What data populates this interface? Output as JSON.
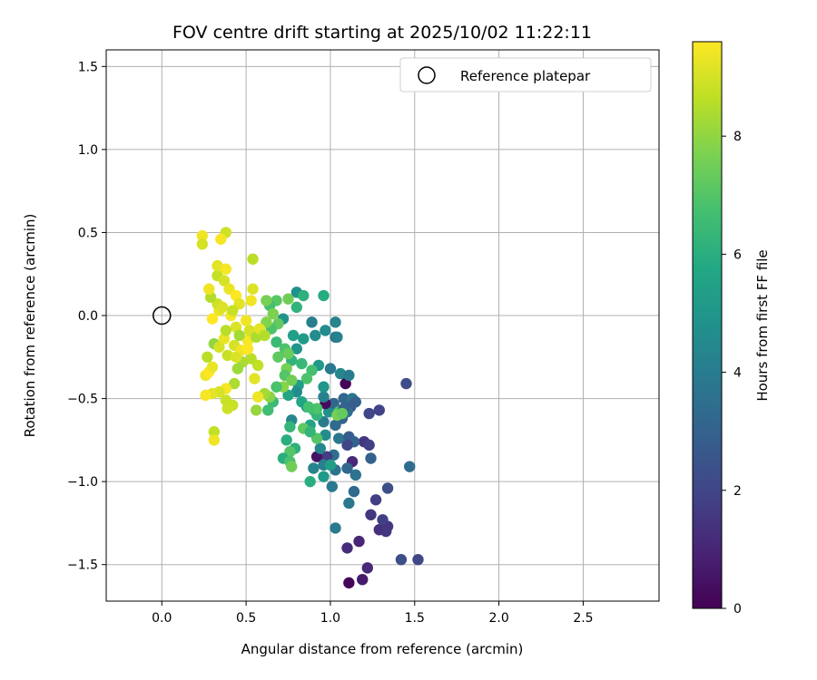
{
  "chart_data": {
    "type": "scatter",
    "title": "FOV centre drift starting at 2025/10/02 11:22:11",
    "xlabel": "Angular distance from reference (arcmin)",
    "ylabel": "Rotation from reference (arcmin)",
    "xlim": [
      -0.33,
      2.95
    ],
    "ylim": [
      -1.72,
      1.6
    ],
    "xticks": [
      0.0,
      0.5,
      1.0,
      1.5,
      2.0,
      2.5
    ],
    "xtick_labels": [
      "0.0",
      "0.5",
      "1.0",
      "1.5",
      "2.0",
      "2.5"
    ],
    "yticks": [
      -1.5,
      -1.0,
      -0.5,
      0.0,
      0.5,
      1.0,
      1.5
    ],
    "ytick_labels": [
      "−1.5",
      "−1.0",
      "−0.5",
      "0.0",
      "0.5",
      "1.0",
      "1.5"
    ],
    "grid": true,
    "legend": {
      "position": "top-right",
      "entries": [
        "Reference platepar"
      ]
    },
    "reference_point": {
      "x": 0.0,
      "y": 0.0
    },
    "colorbar": {
      "label": "Hours from first FF file",
      "min": 0,
      "max": 9.6,
      "ticks": [
        0,
        2,
        4,
        6,
        8
      ],
      "tick_labels": [
        "0",
        "2",
        "4",
        "6",
        "8"
      ],
      "colormap": "viridis"
    },
    "points": [
      {
        "x": 1.11,
        "y": -1.61,
        "t": 0.1
      },
      {
        "x": 1.19,
        "y": -1.59,
        "t": 0.7
      },
      {
        "x": 1.22,
        "y": -1.52,
        "t": 1.1
      },
      {
        "x": 1.1,
        "y": -1.4,
        "t": 1.2
      },
      {
        "x": 1.17,
        "y": -1.36,
        "t": 1.0
      },
      {
        "x": 1.29,
        "y": -1.29,
        "t": 1.3
      },
      {
        "x": 1.33,
        "y": -1.3,
        "t": 1.5
      },
      {
        "x": 1.34,
        "y": -1.27,
        "t": 1.5
      },
      {
        "x": 1.31,
        "y": -1.23,
        "t": 1.8
      },
      {
        "x": 1.24,
        "y": -1.2,
        "t": 1.5
      },
      {
        "x": 1.42,
        "y": -1.47,
        "t": 2.3
      },
      {
        "x": 1.52,
        "y": -1.47,
        "t": 2.1
      },
      {
        "x": 1.27,
        "y": -1.11,
        "t": 1.8
      },
      {
        "x": 1.34,
        "y": -1.04,
        "t": 2.3
      },
      {
        "x": 1.47,
        "y": -0.91,
        "t": 3.4
      },
      {
        "x": 1.45,
        "y": -0.41,
        "t": 2.2
      },
      {
        "x": 1.29,
        "y": -0.57,
        "t": 1.9
      },
      {
        "x": 1.23,
        "y": -0.59,
        "t": 2.0
      },
      {
        "x": 1.2,
        "y": -0.76,
        "t": 1.5
      },
      {
        "x": 1.23,
        "y": -0.78,
        "t": 1.8
      },
      {
        "x": 1.24,
        "y": -0.86,
        "t": 3.0
      },
      {
        "x": 1.15,
        "y": -0.96,
        "t": 3.6
      },
      {
        "x": 1.14,
        "y": -1.06,
        "t": 3.3
      },
      {
        "x": 1.11,
        "y": -1.13,
        "t": 3.8
      },
      {
        "x": 1.03,
        "y": -1.28,
        "t": 3.9
      },
      {
        "x": 1.09,
        "y": -0.41,
        "t": 0.1
      },
      {
        "x": 1.08,
        "y": -0.5,
        "t": 3.2
      },
      {
        "x": 1.13,
        "y": -0.5,
        "t": 3.8
      },
      {
        "x": 1.15,
        "y": -0.52,
        "t": 3.0
      },
      {
        "x": 1.12,
        "y": -0.55,
        "t": 2.8
      },
      {
        "x": 1.1,
        "y": -0.58,
        "t": 3.5
      },
      {
        "x": 1.07,
        "y": -0.62,
        "t": 3.0
      },
      {
        "x": 1.03,
        "y": -0.66,
        "t": 3.3
      },
      {
        "x": 1.05,
        "y": -0.74,
        "t": 3.8
      },
      {
        "x": 1.11,
        "y": -0.73,
        "t": 2.8
      },
      {
        "x": 1.14,
        "y": -0.76,
        "t": 3.0
      },
      {
        "x": 1.1,
        "y": -0.78,
        "t": 2.0
      },
      {
        "x": 1.02,
        "y": -0.84,
        "t": 3.5
      },
      {
        "x": 0.98,
        "y": -0.85,
        "t": 1.7
      },
      {
        "x": 0.92,
        "y": -0.85,
        "t": 0.5
      },
      {
        "x": 1.13,
        "y": -0.88,
        "t": 1.1
      },
      {
        "x": 1.1,
        "y": -0.92,
        "t": 3.2
      },
      {
        "x": 1.03,
        "y": -0.93,
        "t": 3.7
      },
      {
        "x": 1.01,
        "y": -1.03,
        "t": 3.9
      },
      {
        "x": 0.96,
        "y": -0.9,
        "t": 4.1
      },
      {
        "x": 0.94,
        "y": -0.8,
        "t": 4.4
      },
      {
        "x": 0.9,
        "y": -0.92,
        "t": 4.3
      },
      {
        "x": 0.97,
        "y": -0.72,
        "t": 4.6
      },
      {
        "x": 0.96,
        "y": -0.64,
        "t": 4.0
      },
      {
        "x": 0.99,
        "y": -0.58,
        "t": 4.8
      },
      {
        "x": 1.02,
        "y": -0.53,
        "t": 3.2
      },
      {
        "x": 0.97,
        "y": -0.53,
        "t": 0.3
      },
      {
        "x": 1.05,
        "y": -0.58,
        "t": 6.8
      },
      {
        "x": 1.08,
        "y": -0.56,
        "t": 3.0
      },
      {
        "x": 0.96,
        "y": -0.49,
        "t": 4.2
      },
      {
        "x": 1.06,
        "y": -0.35,
        "t": 4.4
      },
      {
        "x": 1.11,
        "y": -0.36,
        "t": 4.0
      },
      {
        "x": 1.0,
        "y": -0.32,
        "t": 3.9
      },
      {
        "x": 0.96,
        "y": -0.43,
        "t": 5.0
      },
      {
        "x": 0.93,
        "y": -0.3,
        "t": 5.1
      },
      {
        "x": 0.97,
        "y": -0.09,
        "t": 4.6
      },
      {
        "x": 1.03,
        "y": -0.13,
        "t": 3.4
      },
      {
        "x": 1.04,
        "y": -0.13,
        "t": 4.2
      },
      {
        "x": 1.03,
        "y": -0.04,
        "t": 4.3
      },
      {
        "x": 0.96,
        "y": 0.12,
        "t": 5.9
      },
      {
        "x": 0.89,
        "y": -0.04,
        "t": 4.1
      },
      {
        "x": 0.91,
        "y": -0.12,
        "t": 4.6
      },
      {
        "x": 0.84,
        "y": -0.14,
        "t": 5.2
      },
      {
        "x": 0.78,
        "y": -0.12,
        "t": 5.4
      },
      {
        "x": 0.8,
        "y": -0.2,
        "t": 5.0
      },
      {
        "x": 0.77,
        "y": -0.27,
        "t": 6.2
      },
      {
        "x": 0.83,
        "y": -0.29,
        "t": 6.4
      },
      {
        "x": 0.89,
        "y": -0.33,
        "t": 6.7
      },
      {
        "x": 0.86,
        "y": -0.38,
        "t": 6.9
      },
      {
        "x": 0.81,
        "y": -0.42,
        "t": 5.4
      },
      {
        "x": 0.8,
        "y": -0.46,
        "t": 4.6
      },
      {
        "x": 0.75,
        "y": -0.48,
        "t": 5.6
      },
      {
        "x": 0.83,
        "y": -0.52,
        "t": 5.7
      },
      {
        "x": 0.86,
        "y": -0.55,
        "t": 5.2
      },
      {
        "x": 0.9,
        "y": -0.57,
        "t": 6.6
      },
      {
        "x": 0.92,
        "y": -0.6,
        "t": 6.3
      },
      {
        "x": 0.88,
        "y": -0.66,
        "t": 5.5
      },
      {
        "x": 0.84,
        "y": -0.68,
        "t": 7.2
      },
      {
        "x": 0.77,
        "y": -0.63,
        "t": 4.4
      },
      {
        "x": 0.76,
        "y": -0.67,
        "t": 6.3
      },
      {
        "x": 0.74,
        "y": -0.75,
        "t": 6.0
      },
      {
        "x": 0.79,
        "y": -0.8,
        "t": 6.1
      },
      {
        "x": 0.76,
        "y": -0.82,
        "t": 7.0
      },
      {
        "x": 0.72,
        "y": -0.86,
        "t": 6.0
      },
      {
        "x": 0.76,
        "y": -0.88,
        "t": 6.8
      },
      {
        "x": 0.77,
        "y": -0.91,
        "t": 7.5
      },
      {
        "x": 0.88,
        "y": -1.0,
        "t": 6.0
      },
      {
        "x": 0.96,
        "y": -0.97,
        "t": 5.2
      },
      {
        "x": 1.0,
        "y": -0.9,
        "t": 5.3
      },
      {
        "x": 1.04,
        "y": -0.6,
        "t": 7.6
      },
      {
        "x": 1.07,
        "y": -0.59,
        "t": 7.3
      },
      {
        "x": 0.92,
        "y": -0.74,
        "t": 7.0
      },
      {
        "x": 0.88,
        "y": -0.7,
        "t": 6.3
      },
      {
        "x": 0.92,
        "y": -0.56,
        "t": 6.9
      },
      {
        "x": 0.87,
        "y": -0.55,
        "t": 6.7
      },
      {
        "x": 0.8,
        "y": 0.14,
        "t": 4.8
      },
      {
        "x": 0.84,
        "y": 0.12,
        "t": 6.1
      },
      {
        "x": 0.75,
        "y": 0.1,
        "t": 7.5
      },
      {
        "x": 0.8,
        "y": 0.05,
        "t": 6.2
      },
      {
        "x": 0.72,
        "y": -0.02,
        "t": 4.9
      },
      {
        "x": 0.68,
        "y": 0.09,
        "t": 7.1
      },
      {
        "x": 0.64,
        "y": 0.06,
        "t": 6.7
      },
      {
        "x": 0.62,
        "y": 0.09,
        "t": 7.6
      },
      {
        "x": 0.66,
        "y": 0.01,
        "t": 7.7
      },
      {
        "x": 0.69,
        "y": -0.05,
        "t": 7.3
      },
      {
        "x": 0.65,
        "y": -0.08,
        "t": 6.9
      },
      {
        "x": 0.62,
        "y": -0.04,
        "t": 7.8
      },
      {
        "x": 0.68,
        "y": -0.16,
        "t": 6.5
      },
      {
        "x": 0.73,
        "y": -0.2,
        "t": 6.9
      },
      {
        "x": 0.75,
        "y": -0.23,
        "t": 7.4
      },
      {
        "x": 0.69,
        "y": -0.25,
        "t": 7.2
      },
      {
        "x": 0.74,
        "y": -0.32,
        "t": 7.6
      },
      {
        "x": 0.73,
        "y": -0.36,
        "t": 7.0
      },
      {
        "x": 0.77,
        "y": -0.39,
        "t": 7.5
      },
      {
        "x": 0.72,
        "y": -0.43,
        "t": 7.9
      },
      {
        "x": 0.68,
        "y": -0.43,
        "t": 6.8
      },
      {
        "x": 0.66,
        "y": -0.52,
        "t": 6.5
      },
      {
        "x": 0.64,
        "y": -0.49,
        "t": 7.9
      },
      {
        "x": 0.63,
        "y": -0.57,
        "t": 6.6
      },
      {
        "x": 0.61,
        "y": -0.47,
        "t": 8.3
      },
      {
        "x": 0.56,
        "y": -0.57,
        "t": 8.1
      },
      {
        "x": 0.57,
        "y": -0.49,
        "t": 9.4
      },
      {
        "x": 0.55,
        "y": -0.38,
        "t": 9.2
      },
      {
        "x": 0.57,
        "y": -0.3,
        "t": 8.7
      },
      {
        "x": 0.53,
        "y": -0.26,
        "t": 8.6
      },
      {
        "x": 0.48,
        "y": -0.28,
        "t": 8.4
      },
      {
        "x": 0.45,
        "y": -0.32,
        "t": 8.2
      },
      {
        "x": 0.43,
        "y": -0.41,
        "t": 8.4
      },
      {
        "x": 0.42,
        "y": -0.54,
        "t": 8.8
      },
      {
        "x": 0.39,
        "y": -0.56,
        "t": 8.9
      },
      {
        "x": 0.38,
        "y": -0.51,
        "t": 8.8
      },
      {
        "x": 0.38,
        "y": -0.44,
        "t": 9.5
      },
      {
        "x": 0.34,
        "y": -0.46,
        "t": 9.0
      },
      {
        "x": 0.3,
        "y": -0.47,
        "t": 9.2
      },
      {
        "x": 0.26,
        "y": -0.48,
        "t": 9.5
      },
      {
        "x": 0.31,
        "y": -0.7,
        "t": 8.7
      },
      {
        "x": 0.31,
        "y": -0.75,
        "t": 9.4
      },
      {
        "x": 0.26,
        "y": -0.36,
        "t": 9.4
      },
      {
        "x": 0.28,
        "y": -0.34,
        "t": 9.6
      },
      {
        "x": 0.3,
        "y": -0.31,
        "t": 9.3
      },
      {
        "x": 0.27,
        "y": -0.25,
        "t": 8.6
      },
      {
        "x": 0.31,
        "y": -0.17,
        "t": 8.0
      },
      {
        "x": 0.34,
        "y": -0.19,
        "t": 9.0
      },
      {
        "x": 0.37,
        "y": -0.14,
        "t": 9.3
      },
      {
        "x": 0.39,
        "y": -0.24,
        "t": 8.8
      },
      {
        "x": 0.43,
        "y": -0.18,
        "t": 9.0
      },
      {
        "x": 0.47,
        "y": -0.21,
        "t": 9.4
      },
      {
        "x": 0.51,
        "y": -0.15,
        "t": 9.5
      },
      {
        "x": 0.52,
        "y": -0.09,
        "t": 9.0
      },
      {
        "x": 0.56,
        "y": -0.13,
        "t": 8.4
      },
      {
        "x": 0.58,
        "y": -0.08,
        "t": 9.2
      },
      {
        "x": 0.61,
        "y": -0.12,
        "t": 8.5
      },
      {
        "x": 0.5,
        "y": -0.03,
        "t": 9.4
      },
      {
        "x": 0.44,
        "y": -0.07,
        "t": 9.1
      },
      {
        "x": 0.41,
        "y": 0.0,
        "t": 9.5
      },
      {
        "x": 0.38,
        "y": -0.09,
        "t": 8.6
      },
      {
        "x": 0.34,
        "y": 0.03,
        "t": 9.3
      },
      {
        "x": 0.3,
        "y": -0.02,
        "t": 9.6
      },
      {
        "x": 0.33,
        "y": 0.07,
        "t": 8.9
      },
      {
        "x": 0.36,
        "y": 0.05,
        "t": 9.1
      },
      {
        "x": 0.29,
        "y": 0.11,
        "t": 8.5
      },
      {
        "x": 0.28,
        "y": 0.16,
        "t": 9.4
      },
      {
        "x": 0.33,
        "y": 0.24,
        "t": 8.7
      },
      {
        "x": 0.33,
        "y": 0.3,
        "t": 9.2
      },
      {
        "x": 0.37,
        "y": 0.21,
        "t": 9.0
      },
      {
        "x": 0.38,
        "y": 0.28,
        "t": 9.5
      },
      {
        "x": 0.4,
        "y": 0.16,
        "t": 9.3
      },
      {
        "x": 0.44,
        "y": 0.12,
        "t": 9.6
      },
      {
        "x": 0.46,
        "y": 0.07,
        "t": 9.2
      },
      {
        "x": 0.42,
        "y": 0.03,
        "t": 8.8
      },
      {
        "x": 0.53,
        "y": 0.09,
        "t": 9.4
      },
      {
        "x": 0.54,
        "y": 0.16,
        "t": 9.1
      },
      {
        "x": 0.54,
        "y": 0.34,
        "t": 8.6
      },
      {
        "x": 0.38,
        "y": 0.5,
        "t": 8.9
      },
      {
        "x": 0.35,
        "y": 0.46,
        "t": 9.5
      },
      {
        "x": 0.24,
        "y": 0.48,
        "t": 9.4
      },
      {
        "x": 0.24,
        "y": 0.43,
        "t": 9.0
      },
      {
        "x": 0.51,
        "y": -0.2,
        "t": 9.6
      },
      {
        "x": 0.46,
        "y": -0.12,
        "t": 8.3
      },
      {
        "x": 0.44,
        "y": -0.25,
        "t": 9.1
      }
    ]
  }
}
